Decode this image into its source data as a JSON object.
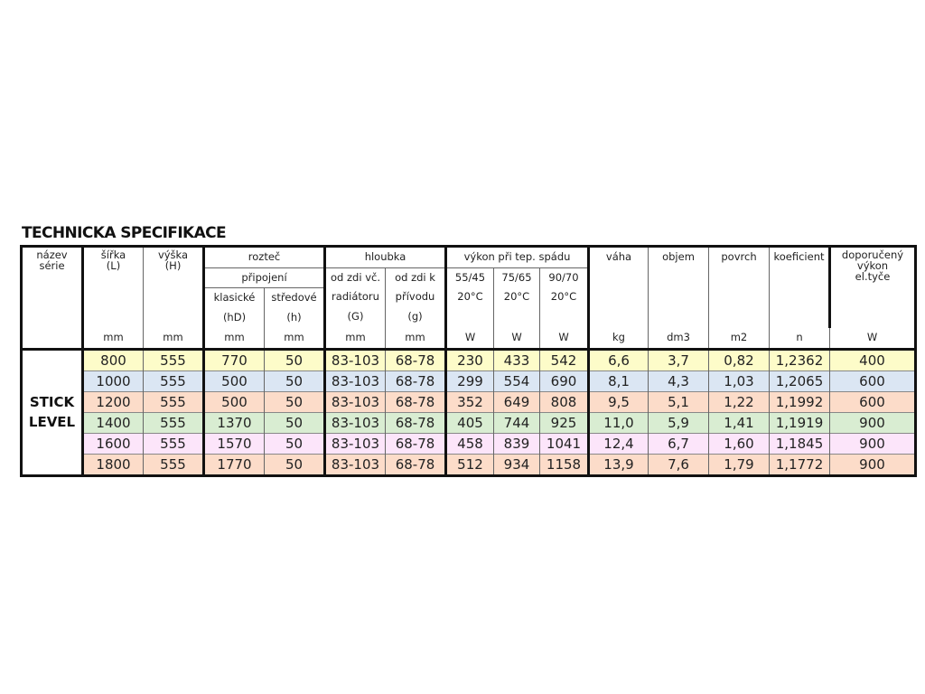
{
  "title": "TECHNICKA SPECIFIKACE",
  "header": {
    "nazev": [
      "název",
      "série"
    ],
    "sirka": [
      "šířka",
      "(L)"
    ],
    "vyska": [
      "výška",
      "(H)"
    ],
    "roztec": "rozteč",
    "pripojeni": "připojení",
    "klasicke": [
      "klasické",
      "(hD)"
    ],
    "stredove": [
      "středové",
      "(h)"
    ],
    "hloubka": "hloubka",
    "G": [
      "od zdi vč.",
      "radiátoru",
      "(G)"
    ],
    "g": [
      "od zdi k",
      "přívodu",
      "(g)"
    ],
    "vykon": "výkon při tep. spádu",
    "v1": [
      "55/45",
      "20°C"
    ],
    "v2": [
      "75/65",
      "20°C"
    ],
    "v3": [
      "90/70",
      "20°C"
    ],
    "vaha": "váha",
    "objem": "objem",
    "povrch": "povrch",
    "koef": "koeficient",
    "dop": [
      "doporučený",
      "výkon",
      "el.tyče"
    ],
    "units": [
      "mm",
      "mm",
      "mm",
      "mm",
      "mm",
      "mm",
      "W",
      "W",
      "W",
      "kg",
      "dm3",
      "m2",
      "n",
      "W"
    ]
  },
  "series": [
    "STICK",
    "LEVEL"
  ],
  "row_colors": [
    "#fdfcc9",
    "#dbe6f3",
    "#fcdcc9",
    "#d9edd2",
    "#fce5fa",
    "#fcdcc9"
  ],
  "rows": [
    [
      "800",
      "555",
      "770",
      "50",
      "83-103",
      "68-78",
      "230",
      "433",
      "542",
      "6,6",
      "3,7",
      "0,82",
      "1,2362",
      "400"
    ],
    [
      "1000",
      "555",
      "500",
      "50",
      "83-103",
      "68-78",
      "299",
      "554",
      "690",
      "8,1",
      "4,3",
      "1,03",
      "1,2065",
      "600"
    ],
    [
      "1200",
      "555",
      "500",
      "50",
      "83-103",
      "68-78",
      "352",
      "649",
      "808",
      "9,5",
      "5,1",
      "1,22",
      "1,1992",
      "600"
    ],
    [
      "1400",
      "555",
      "1370",
      "50",
      "83-103",
      "68-78",
      "405",
      "744",
      "925",
      "11,0",
      "5,9",
      "1,41",
      "1,1919",
      "900"
    ],
    [
      "1600",
      "555",
      "1570",
      "50",
      "83-103",
      "68-78",
      "458",
      "839",
      "1041",
      "12,4",
      "6,7",
      "1,60",
      "1,1845",
      "900"
    ],
    [
      "1800",
      "555",
      "1770",
      "50",
      "83-103",
      "68-78",
      "512",
      "934",
      "1158",
      "13,9",
      "7,6",
      "1,79",
      "1,1772",
      "900"
    ]
  ]
}
